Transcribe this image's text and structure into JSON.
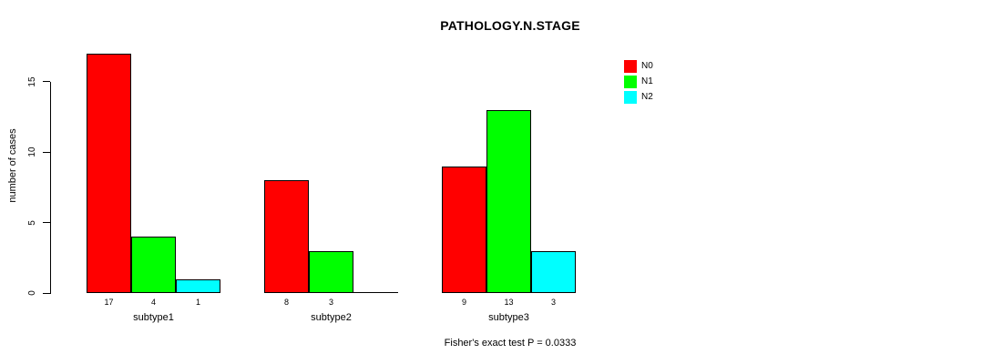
{
  "chart_data": {
    "type": "bar",
    "grouped": true,
    "title": "PATHOLOGY.N.STAGE",
    "ylabel": "number of cases",
    "xlabel": "",
    "categories": [
      "subtype1",
      "subtype2",
      "subtype3"
    ],
    "series": [
      {
        "name": "N0",
        "color": "#ff0000",
        "values": [
          17,
          8,
          9
        ]
      },
      {
        "name": "N1",
        "color": "#00ff00",
        "values": [
          4,
          3,
          13
        ]
      },
      {
        "name": "N2",
        "color": "#00ffff",
        "values": [
          1,
          0,
          3
        ]
      }
    ],
    "bar_value_labels": [
      [
        "17",
        "4",
        "1"
      ],
      [
        "8",
        "3",
        ""
      ],
      [
        "9",
        "13",
        "3"
      ]
    ],
    "yticks": [
      0,
      5,
      10,
      15
    ],
    "ylim": [
      0,
      15
    ],
    "grid": false,
    "legend_position": "top-right",
    "bar_border_color": "#000000",
    "background": "#ffffff",
    "annotation": "Fisher's exact test P = 0.0333"
  }
}
